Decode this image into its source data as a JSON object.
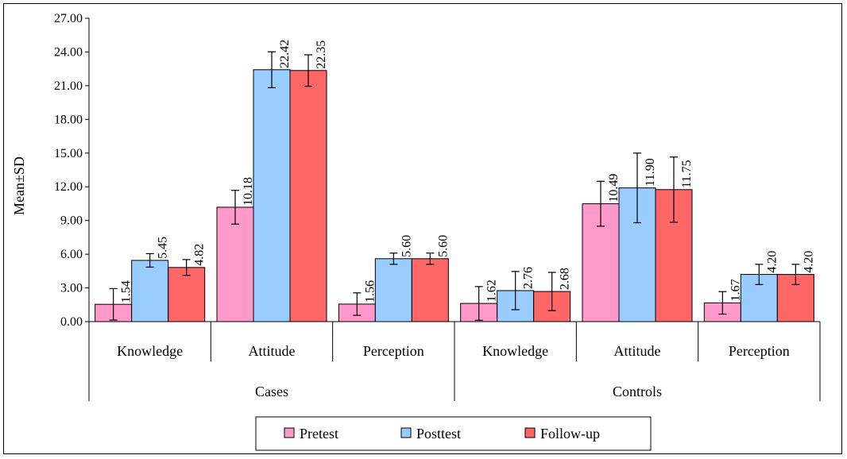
{
  "chart_data": {
    "type": "bar",
    "ylabel": "Mean±SD",
    "ylim": [
      0,
      27
    ],
    "yticks": [
      "0.00",
      "3.00",
      "6.00",
      "9.00",
      "12.00",
      "15.00",
      "18.00",
      "21.00",
      "24.00",
      "27.00"
    ],
    "groups": [
      "Cases",
      "Controls"
    ],
    "categories": [
      "Knowledge",
      "Attitude",
      "Perception",
      "Knowledge",
      "Attitude",
      "Perception"
    ],
    "series": [
      {
        "name": "Pretest",
        "color": "#FF99CC",
        "values": [
          1.54,
          10.18,
          1.56,
          1.62,
          10.49,
          1.67
        ],
        "labels": [
          "1.54",
          "10.18",
          "1.56",
          "1.62",
          "10.49",
          "1.67"
        ],
        "sd": [
          1.4,
          1.5,
          1.0,
          1.5,
          2.0,
          1.0
        ]
      },
      {
        "name": "Posttest",
        "color": "#99CCFF",
        "values": [
          5.45,
          22.42,
          5.6,
          2.76,
          11.9,
          4.2
        ],
        "labels": [
          "5.45",
          "22.42",
          "5.60",
          "2.76",
          "11.90",
          "4.20"
        ],
        "sd": [
          0.6,
          1.6,
          0.5,
          1.7,
          3.1,
          0.9
        ]
      },
      {
        "name": "Follow-up",
        "color": "#FF6666",
        "values": [
          4.82,
          22.35,
          5.6,
          2.68,
          11.75,
          4.2
        ],
        "labels": [
          "4.82",
          "22.35",
          "5.60",
          "2.68",
          "11.75",
          "4.20"
        ],
        "sd": [
          0.7,
          1.4,
          0.5,
          1.7,
          2.9,
          0.9
        ]
      }
    ],
    "grid": false,
    "legend_position": "bottom"
  }
}
